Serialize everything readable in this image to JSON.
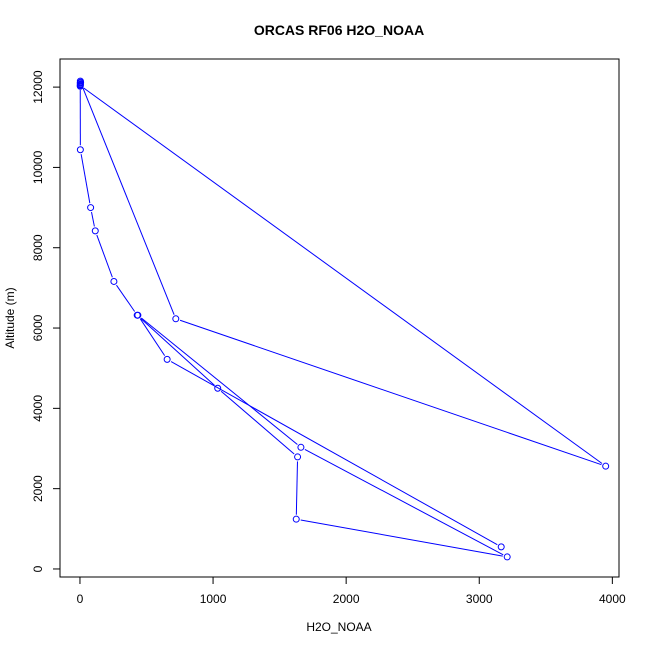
{
  "chart_data": {
    "type": "line",
    "title": "ORCAS RF06 H2O_NOAA",
    "xlabel": "H2O_NOAA",
    "ylabel": "Altitude (m)",
    "xlim": [
      -150,
      4050
    ],
    "ylim": [
      -200,
      12700
    ],
    "x_ticks": [
      0,
      1000,
      2000,
      3000,
      4000
    ],
    "x_tick_labels": [
      "0",
      "1000",
      "2000",
      "3000",
      "4000"
    ],
    "y_ticks": [
      0,
      2000,
      4000,
      6000,
      8000,
      10000,
      12000
    ],
    "y_tick_labels": [
      "0",
      "2000",
      "4000",
      "6000",
      "8000",
      "10000",
      "12000"
    ],
    "grid": false,
    "legend": "none",
    "series": [
      {
        "color": "#0000ff",
        "marker": "open-circle",
        "points": [
          {
            "x": 3,
            "y": 12150
          },
          {
            "x": 2,
            "y": 12100
          },
          {
            "x": 3,
            "y": 12060
          },
          {
            "x": 2,
            "y": 12020
          },
          {
            "x": 3,
            "y": 12070
          },
          {
            "x": 5,
            "y": 12120
          },
          {
            "x": 720,
            "y": 6230
          },
          {
            "x": 3950,
            "y": 2560
          },
          {
            "x": 2,
            "y": 12040
          },
          {
            "x": 3,
            "y": 10440
          },
          {
            "x": 80,
            "y": 9000
          },
          {
            "x": 115,
            "y": 8420
          },
          {
            "x": 255,
            "y": 7160
          },
          {
            "x": 430,
            "y": 6320
          },
          {
            "x": 1035,
            "y": 4500
          },
          {
            "x": 1635,
            "y": 2790
          },
          {
            "x": 1625,
            "y": 1240
          },
          {
            "x": 3210,
            "y": 300
          },
          {
            "x": 1660,
            "y": 3030
          },
          {
            "x": 435,
            "y": 6320
          },
          {
            "x": 655,
            "y": 5220
          },
          {
            "x": 3165,
            "y": 550
          }
        ]
      }
    ]
  }
}
